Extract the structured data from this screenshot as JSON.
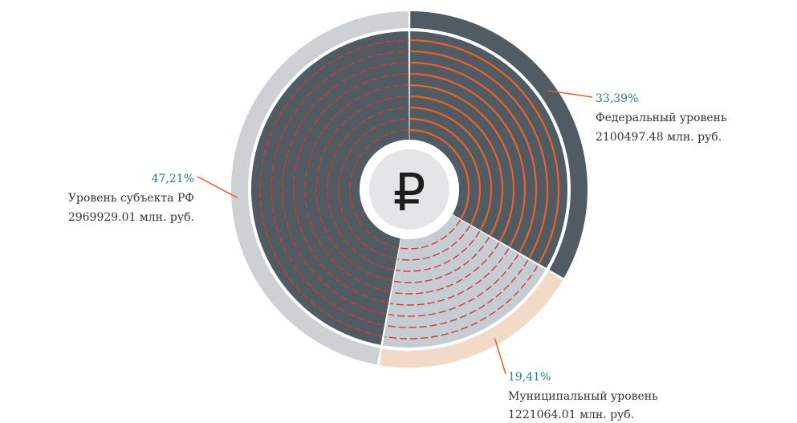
{
  "chart_data": {
    "type": "pie",
    "center_symbol": "₽",
    "slices": [
      {
        "name": "Федеральный уровень",
        "percent": 33.39,
        "percent_label": "33,39%",
        "value": 2100497.48,
        "value_label": "2100497.48 млн. руб.",
        "outer_color": "#505b63",
        "inner_color": "#505b63",
        "stripe_color": "#e8622a"
      },
      {
        "name": "Муниципальный уровень",
        "percent": 19.41,
        "percent_label": "19,41%",
        "value": 1221064.01,
        "value_label": "1221064.01 млн. руб.",
        "outer_color": "#f2d9c8",
        "inner_color": "#c5ccd2",
        "stripe_color": "#d23a2f"
      },
      {
        "name": "Уровень субъекта РФ",
        "percent": 47.21,
        "percent_label": "47,21%",
        "value": 2969929.01,
        "value_label": "2969929.01 млн. руб.",
        "outer_color": "#ced1d4",
        "inner_color": "#505b63",
        "stripe_color": "#d23a2f"
      }
    ],
    "leader_color": "#e8622a"
  }
}
